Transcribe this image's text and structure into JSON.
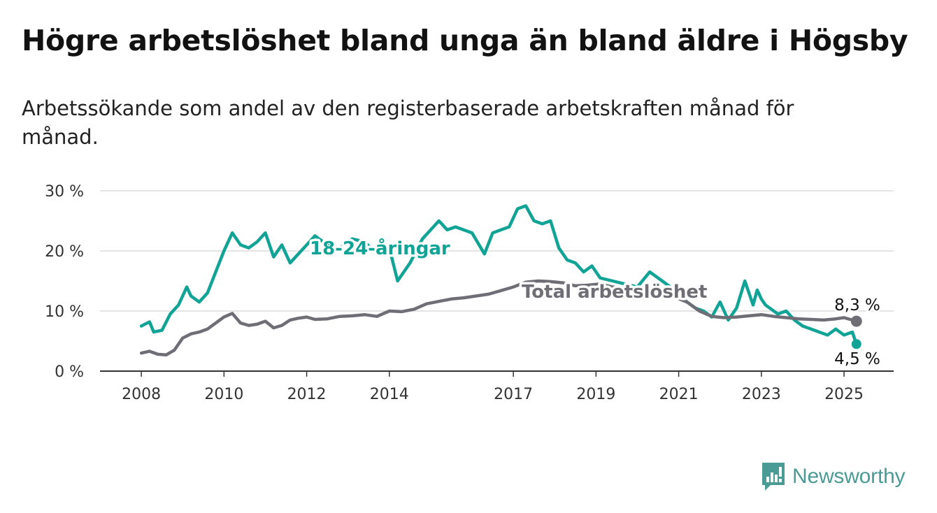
{
  "title": "Högre arbetslöshet bland unga än bland äldre i Högsby",
  "subtitle": "Arbetssökande som andel av den registerbaserade arbetskraften månad för månad.",
  "brand": {
    "name": "Newsworthy",
    "icon": "newsworthy-logo-icon",
    "color": "#4a9b96"
  },
  "chart_data": {
    "type": "line",
    "ylim": [
      0,
      30
    ],
    "y_ticks": [
      0,
      10,
      20,
      30
    ],
    "y_tick_labels": [
      "0 %",
      "10 %",
      "20 %",
      "30 %"
    ],
    "x_range": [
      2007.0,
      2026.2
    ],
    "x_ticks": [
      2008,
      2010,
      2012,
      2014,
      2017,
      2019,
      2021,
      2023,
      2025
    ],
    "x_tick_labels": [
      "2008",
      "2010",
      "2012",
      "2014",
      "2017",
      "2019",
      "2021",
      "2023",
      "2025"
    ],
    "grid": true,
    "legend": "inline labels",
    "series": [
      {
        "name": "18-24-åringar",
        "color": "#11a396",
        "end_label": "4,5 %",
        "x": [
          2008.0,
          2008.2,
          2008.3,
          2008.5,
          2008.7,
          2008.9,
          2009.1,
          2009.2,
          2009.4,
          2009.6,
          2009.8,
          2010.0,
          2010.2,
          2010.4,
          2010.6,
          2010.8,
          2011.0,
          2011.2,
          2011.4,
          2011.6,
          2011.8,
          2012.0,
          2012.2,
          2012.5,
          2012.8,
          2013.1,
          2013.4,
          2013.7,
          2014.0,
          2014.2,
          2014.5,
          2014.8,
          2015.0,
          2015.2,
          2015.4,
          2015.6,
          2016.0,
          2016.3,
          2016.5,
          2016.7,
          2016.9,
          2017.1,
          2017.3,
          2017.5,
          2017.7,
          2017.9,
          2018.1,
          2018.3,
          2018.5,
          2018.7,
          2018.9,
          2019.1,
          2019.4,
          2019.7,
          2020.0,
          2020.3,
          2020.6,
          2020.9,
          2021.2,
          2021.4,
          2021.6,
          2021.8,
          2022.0,
          2022.2,
          2022.4,
          2022.6,
          2022.7,
          2022.8,
          2022.9,
          2023.0,
          2023.1,
          2023.2,
          2023.4,
          2023.6,
          2023.8,
          2024.0,
          2024.2,
          2024.4,
          2024.6,
          2024.8,
          2025.0,
          2025.2,
          2025.3
        ],
        "values": [
          7.5,
          8.2,
          6.5,
          6.8,
          9.5,
          11.0,
          14.0,
          12.5,
          11.5,
          13.0,
          16.5,
          20.0,
          23.0,
          21.0,
          20.5,
          21.5,
          23.0,
          19.0,
          21.0,
          18.0,
          19.5,
          21.0,
          22.5,
          21.0,
          20.5,
          22.0,
          21.5,
          19.5,
          20.5,
          15.0,
          18.0,
          22.0,
          23.5,
          25.0,
          23.5,
          24.0,
          23.0,
          19.5,
          23.0,
          23.5,
          24.0,
          27.0,
          27.5,
          25.0,
          24.5,
          25.0,
          20.5,
          18.5,
          18.0,
          16.5,
          17.5,
          15.5,
          15.0,
          14.5,
          14.0,
          16.5,
          15.0,
          13.5,
          11.5,
          10.5,
          10.0,
          9.0,
          11.5,
          8.5,
          10.5,
          15.0,
          13.0,
          11.0,
          13.5,
          12.0,
          11.0,
          10.5,
          9.5,
          10.0,
          8.5,
          7.5,
          7.0,
          6.5,
          6.0,
          7.0,
          6.0,
          6.5,
          4.5
        ]
      },
      {
        "name": "Total arbetslöshet",
        "color": "#6f6e76",
        "end_label": "8,3 %",
        "x": [
          2008.0,
          2008.2,
          2008.4,
          2008.6,
          2008.8,
          2009.0,
          2009.2,
          2009.4,
          2009.6,
          2009.8,
          2010.0,
          2010.2,
          2010.4,
          2010.6,
          2010.8,
          2011.0,
          2011.2,
          2011.4,
          2011.6,
          2011.8,
          2012.0,
          2012.2,
          2012.5,
          2012.8,
          2013.1,
          2013.4,
          2013.7,
          2014.0,
          2014.3,
          2014.6,
          2014.9,
          2015.2,
          2015.5,
          2015.8,
          2016.1,
          2016.4,
          2016.7,
          2017.0,
          2017.3,
          2017.6,
          2017.9,
          2018.2,
          2018.5,
          2018.8,
          2019.1,
          2019.4,
          2019.7,
          2020.0,
          2020.3,
          2020.6,
          2020.9,
          2021.2,
          2021.5,
          2021.8,
          2022.1,
          2022.4,
          2022.7,
          2023.0,
          2023.3,
          2023.6,
          2023.9,
          2024.2,
          2024.5,
          2024.8,
          2025.0,
          2025.3
        ],
        "values": [
          3.0,
          3.3,
          2.8,
          2.7,
          3.5,
          5.5,
          6.2,
          6.5,
          7.0,
          8.0,
          9.0,
          9.6,
          8.0,
          7.6,
          7.8,
          8.3,
          7.2,
          7.6,
          8.5,
          8.8,
          9.0,
          8.6,
          8.7,
          9.1,
          9.2,
          9.4,
          9.1,
          10.0,
          9.9,
          10.3,
          11.2,
          11.6,
          12.0,
          12.2,
          12.5,
          12.8,
          13.4,
          14.0,
          14.8,
          15.0,
          14.9,
          14.7,
          14.2,
          14.3,
          14.5,
          14.0,
          13.8,
          13.6,
          13.4,
          12.8,
          12.3,
          11.5,
          10.0,
          9.1,
          8.9,
          9.0,
          9.2,
          9.4,
          9.1,
          8.9,
          8.7,
          8.6,
          8.5,
          8.7,
          8.9,
          8.3
        ]
      }
    ]
  }
}
